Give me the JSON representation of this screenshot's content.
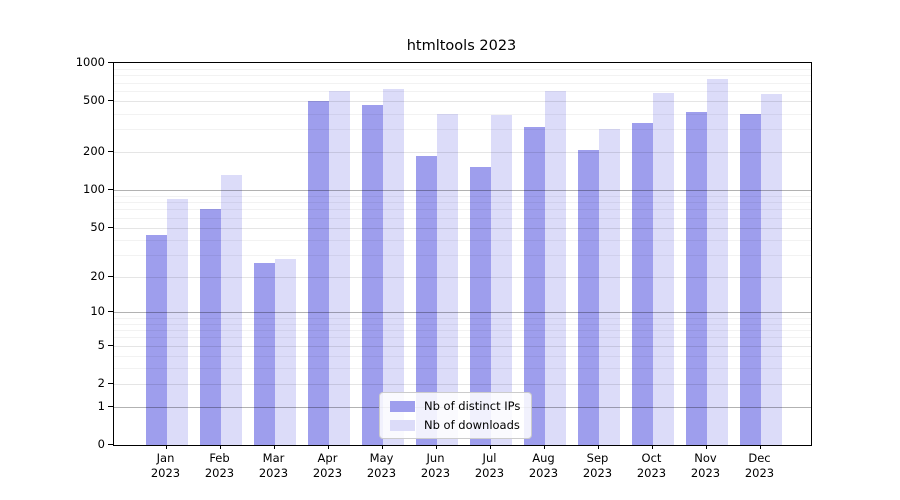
{
  "chart_data": {
    "type": "bar",
    "title": "htmltools 2023",
    "xlabel": "",
    "ylabel": "",
    "y_scale": "log1p",
    "ylim": [
      0,
      1000
    ],
    "grid": true,
    "legend_position": "lower center",
    "y_ticks": [
      0,
      1,
      2,
      5,
      10,
      20,
      50,
      100,
      200,
      500,
      1000
    ],
    "y_major_ticks": [
      1,
      10,
      100,
      1000
    ],
    "y_minor_gridlines": [
      3,
      4,
      6,
      7,
      8,
      9,
      30,
      40,
      60,
      70,
      80,
      90,
      300,
      400,
      600,
      700,
      800,
      900
    ],
    "categories": [
      "Jan 2023",
      "Feb 2023",
      "Mar 2023",
      "Apr 2023",
      "May 2023",
      "Jun 2023",
      "Jul 2023",
      "Aug 2023",
      "Sep 2023",
      "Oct 2023",
      "Nov 2023",
      "Dec 2023"
    ],
    "series": [
      {
        "name": "Nb of distinct IPs",
        "color": "#9e9eed",
        "values": [
          44,
          71,
          26,
          500,
          470,
          185,
          152,
          315,
          208,
          335,
          415,
          400
        ]
      },
      {
        "name": "Nb of downloads",
        "color": "#dcdcf9",
        "values": [
          85,
          132,
          28,
          605,
          630,
          400,
          390,
          600,
          305,
          585,
          755,
          570
        ]
      }
    ]
  }
}
